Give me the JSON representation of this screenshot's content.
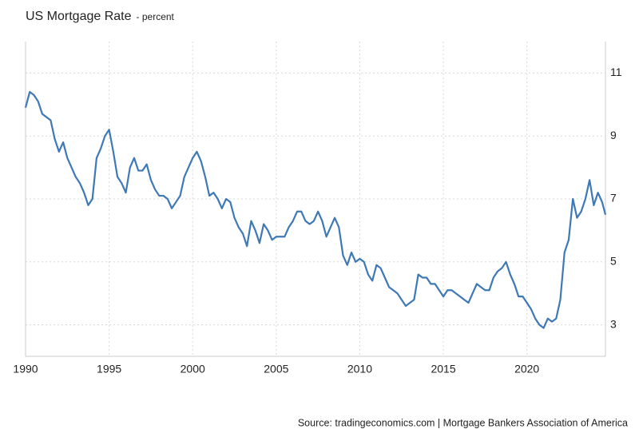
{
  "chart_data": {
    "type": "line",
    "title": "US Mortgage Rate",
    "subtitle": "- percent",
    "source": "Source: tradingeconomics.com | Mortgage Bankers Association of America",
    "x": [
      1990,
      1990.25,
      1990.5,
      1990.75,
      1991,
      1991.25,
      1991.5,
      1991.75,
      1992,
      1992.25,
      1992.5,
      1992.75,
      1993,
      1993.25,
      1993.5,
      1993.75,
      1994,
      1994.25,
      1994.5,
      1994.75,
      1995,
      1995.25,
      1995.5,
      1995.75,
      1996,
      1996.25,
      1996.5,
      1996.75,
      1997,
      1997.25,
      1997.5,
      1997.75,
      1998,
      1998.25,
      1998.5,
      1998.75,
      1999,
      1999.25,
      1999.5,
      1999.75,
      2000,
      2000.25,
      2000.5,
      2000.75,
      2001,
      2001.25,
      2001.5,
      2001.75,
      2002,
      2002.25,
      2002.5,
      2002.75,
      2003,
      2003.25,
      2003.5,
      2003.75,
      2004,
      2004.25,
      2004.5,
      2004.75,
      2005,
      2005.25,
      2005.5,
      2005.75,
      2006,
      2006.25,
      2006.5,
      2006.75,
      2007,
      2007.25,
      2007.5,
      2007.75,
      2008,
      2008.25,
      2008.5,
      2008.75,
      2009,
      2009.25,
      2009.5,
      2009.75,
      2010,
      2010.25,
      2010.5,
      2010.75,
      2011,
      2011.25,
      2011.5,
      2011.75,
      2012,
      2012.25,
      2012.5,
      2012.75,
      2013,
      2013.25,
      2013.5,
      2013.75,
      2014,
      2014.25,
      2014.5,
      2014.75,
      2015,
      2015.25,
      2015.5,
      2015.75,
      2016,
      2016.25,
      2016.5,
      2016.75,
      2017,
      2017.25,
      2017.5,
      2017.75,
      2018,
      2018.25,
      2018.5,
      2018.75,
      2019,
      2019.25,
      2019.5,
      2019.75,
      2020,
      2020.25,
      2020.5,
      2020.75,
      2021,
      2021.25,
      2021.5,
      2021.75,
      2022,
      2022.25,
      2022.5,
      2022.75,
      2023,
      2023.25,
      2023.5,
      2023.75,
      2024,
      2024.25,
      2024.5,
      2024.7
    ],
    "series": [
      {
        "name": "US Mortgage Rate",
        "color": "#3e78b6",
        "values": [
          9.9,
          10.4,
          10.3,
          10.1,
          9.7,
          9.6,
          9.5,
          8.9,
          8.5,
          8.8,
          8.3,
          8.0,
          7.7,
          7.5,
          7.2,
          6.8,
          7.0,
          8.3,
          8.6,
          9.0,
          9.2,
          8.5,
          7.7,
          7.5,
          7.2,
          8.0,
          8.3,
          7.9,
          7.9,
          8.1,
          7.6,
          7.3,
          7.1,
          7.1,
          7.0,
          6.7,
          6.9,
          7.1,
          7.7,
          8.0,
          8.3,
          8.5,
          8.2,
          7.7,
          7.1,
          7.2,
          7.0,
          6.7,
          7.0,
          6.9,
          6.4,
          6.1,
          5.9,
          5.5,
          6.3,
          6.0,
          5.6,
          6.2,
          6.0,
          5.7,
          5.8,
          5.8,
          5.8,
          6.1,
          6.3,
          6.6,
          6.6,
          6.3,
          6.2,
          6.3,
          6.6,
          6.3,
          5.8,
          6.1,
          6.4,
          6.1,
          5.2,
          4.9,
          5.3,
          5.0,
          5.1,
          5.0,
          4.6,
          4.4,
          4.9,
          4.8,
          4.5,
          4.2,
          4.1,
          4.0,
          3.8,
          3.6,
          3.7,
          3.8,
          4.6,
          4.5,
          4.5,
          4.3,
          4.3,
          4.1,
          3.9,
          4.1,
          4.1,
          4.0,
          3.9,
          3.8,
          3.7,
          4.0,
          4.3,
          4.2,
          4.1,
          4.1,
          4.5,
          4.7,
          4.8,
          5.0,
          4.6,
          4.3,
          3.9,
          3.9,
          3.7,
          3.5,
          3.2,
          3.0,
          2.9,
          3.2,
          3.1,
          3.2,
          3.8,
          5.3,
          5.7,
          7.0,
          6.4,
          6.6,
          7.0,
          7.6,
          6.8,
          7.2,
          6.9,
          6.5
        ]
      }
    ],
    "xlim": [
      1990,
      2024.7
    ],
    "xticks": [
      1990,
      1995,
      2000,
      2005,
      2010,
      2015,
      2020
    ],
    "ylim": [
      2,
      12
    ],
    "yticks": [
      3,
      5,
      7,
      9,
      11
    ],
    "grid": true
  }
}
